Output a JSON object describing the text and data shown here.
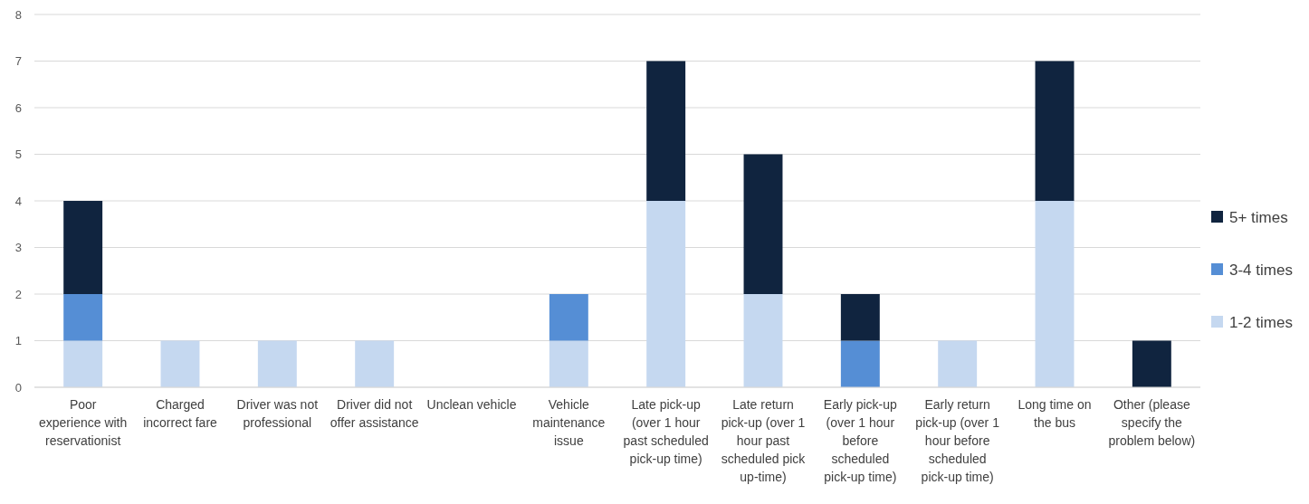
{
  "chart_data": {
    "type": "bar",
    "stacked": true,
    "categories": [
      "Poor experience with reservationist",
      "Charged incorrect fare",
      "Driver was not professional",
      "Driver did not offer assistance",
      "Unclean vehicle",
      "Vehicle maintenance issue",
      "Late pick-up (over 1 hour past scheduled pick-up time)",
      "Late return pick-up (over 1 hour past scheduled pick up-time)",
      "Early pick-up (over 1 hour before scheduled pick-up time)",
      "Early return pick-up (over 1 hour before scheduled pick-up time)",
      "Long time on the bus",
      "Other (please specify the problem below)"
    ],
    "series": [
      {
        "name": "1-2 times",
        "color": "#c5d8f0",
        "values": [
          1,
          1,
          1,
          1,
          0,
          1,
          4,
          2,
          0,
          1,
          4,
          0
        ]
      },
      {
        "name": "3-4 times",
        "color": "#558ed5",
        "values": [
          1,
          0,
          0,
          0,
          0,
          1,
          0,
          0,
          1,
          0,
          0,
          0
        ]
      },
      {
        "name": "5+ times",
        "color": "#10243f",
        "values": [
          2,
          0,
          0,
          0,
          0,
          0,
          3,
          3,
          1,
          0,
          3,
          1
        ]
      }
    ],
    "ylim": [
      0,
      8
    ],
    "yticks": [
      0,
      1,
      2,
      3,
      4,
      5,
      6,
      7,
      8
    ],
    "grid": "y",
    "legend": "right"
  }
}
